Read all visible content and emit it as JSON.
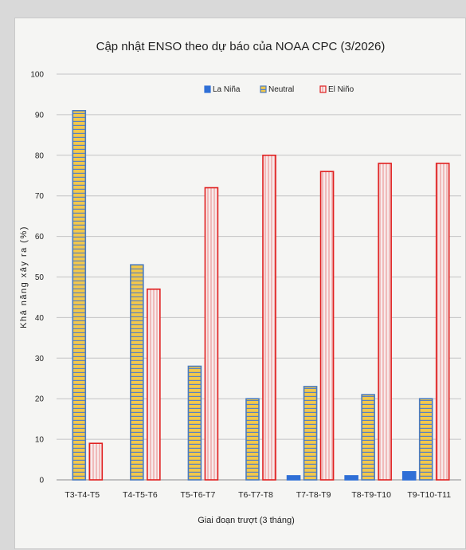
{
  "chart_data": {
    "type": "bar",
    "title": "Cập nhật ENSO theo dự báo của NOAA CPC (3/2026)",
    "xlabel": "Giai đoạn trượt (3 tháng)",
    "ylabel": "Khả năng xảy ra (%)",
    "ylim": [
      0,
      100
    ],
    "yticks": [
      0,
      10,
      20,
      30,
      40,
      50,
      60,
      70,
      80,
      90,
      100
    ],
    "grid": true,
    "legend_position": "top-right",
    "categories": [
      "T3-T4-T5",
      "T4-T5-T6",
      "T5-T6-T7",
      "T6-T7-T8",
      "T7-T8-T9",
      "T8-T9-T10",
      "T9-T10-T11"
    ],
    "series": [
      {
        "name": "La Niña",
        "color": "#2f6fd6",
        "values": [
          0,
          0,
          0,
          0,
          1,
          1,
          2
        ]
      },
      {
        "name": "Neutral",
        "color": "#f2c84b",
        "edge": "#4b7bbf",
        "values": [
          91,
          53,
          28,
          20,
          23,
          21,
          20
        ]
      },
      {
        "name": "El Niño",
        "color": "#f4e4e4",
        "edge": "#e02020",
        "values": [
          9,
          47,
          72,
          80,
          76,
          78,
          78
        ]
      }
    ]
  }
}
